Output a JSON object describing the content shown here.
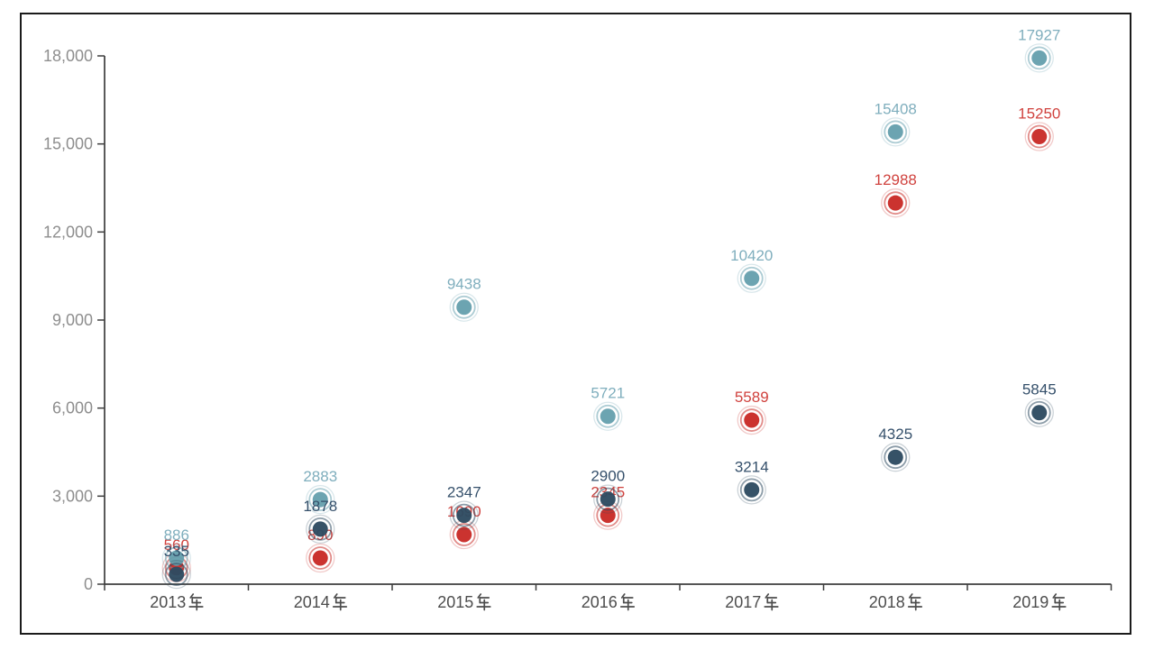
{
  "chart_data": {
    "type": "scatter",
    "title": "",
    "xlabel": "",
    "ylabel": "",
    "categories": [
      "2013年",
      "2014年",
      "2015年",
      "2016年",
      "2017年",
      "2018年",
      "2019年"
    ],
    "series": [
      {
        "name": "teal-series",
        "color": "#66A0AE",
        "label_color": "#7FAEBD",
        "z": 2,
        "values": [
          886,
          2883,
          9438,
          5721,
          10420,
          15408,
          17927
        ],
        "labels": [
          "886",
          "2883",
          "9438",
          "5721",
          "10420",
          "15408",
          "17927"
        ]
      },
      {
        "name": "red-series",
        "color": "#C92B27",
        "label_color": "#D0423E",
        "z": 1,
        "values": [
          560,
          890,
          1690,
          2345,
          5589,
          12988,
          15250
        ],
        "labels": [
          "560",
          "890",
          "1690",
          "2345",
          "5589",
          "12988",
          "15250"
        ]
      },
      {
        "name": "navy-series",
        "color": "#2E4B61",
        "label_color": "#35506B",
        "z": 3,
        "values": [
          335,
          1878,
          2347,
          2900,
          3214,
          4325,
          5845
        ],
        "labels": [
          "335",
          "1878",
          "2347",
          "2900",
          "3214",
          "4325",
          "5845"
        ]
      }
    ],
    "ylim": [
      0,
      18000
    ],
    "ytick_step": 3000,
    "ytick_labels": [
      "0",
      "3,000",
      "6,000",
      "9,000",
      "12,000",
      "15,000",
      "18,000"
    ],
    "grid": false,
    "legend": false,
    "marker_style": "bullseye"
  }
}
